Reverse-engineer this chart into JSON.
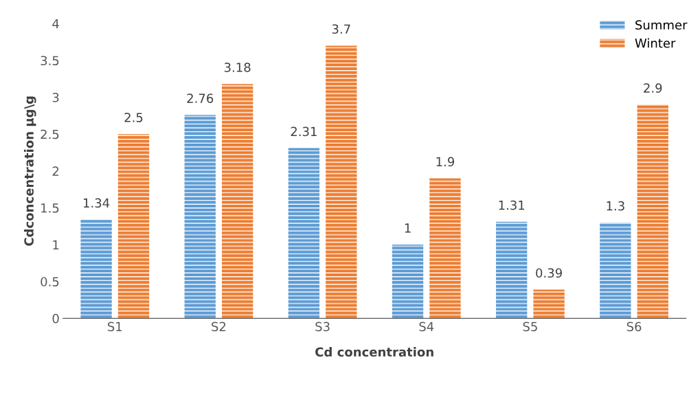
{
  "chart_data": {
    "type": "bar",
    "xlabel": "Cd concentration",
    "ylabel": "Cdconcentration µg\\g",
    "categories": [
      "S1",
      "S2",
      "S3",
      "S4",
      "S5",
      "S6"
    ],
    "series": [
      {
        "name": "Summer",
        "color": "#5b9bd5",
        "values": [
          1.34,
          2.76,
          2.31,
          1,
          1.31,
          1.3
        ]
      },
      {
        "name": "Winter",
        "color": "#ed7d31",
        "values": [
          2.5,
          3.18,
          3.7,
          1.9,
          0.39,
          2.9
        ]
      }
    ],
    "ylim": [
      0,
      4
    ],
    "yticks": [
      0,
      0.5,
      1,
      1.5,
      2,
      2.5,
      3,
      3.5,
      4
    ],
    "grid": false,
    "legend": "top right",
    "data_labels": true
  }
}
